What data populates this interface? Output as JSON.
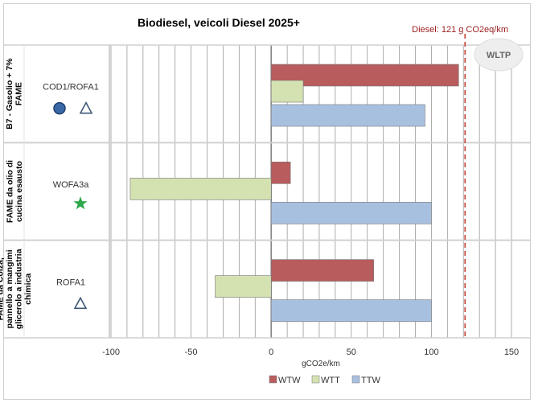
{
  "chart_data": {
    "type": "bar",
    "orientation": "horizontal",
    "title": "Biodiesel, veicoli Diesel  2025+",
    "xlabel": "gCO2e/km",
    "xlim": [
      -100,
      150
    ],
    "xticks": [
      "-100",
      "-50",
      "0",
      "50",
      "100",
      "150"
    ],
    "grid": true,
    "legend_position": "bottom",
    "categories": [
      {
        "label_lines": [
          "B7 - Gasolio + 7%",
          "FAME"
        ],
        "markers": [
          {
            "label": "COD1/ROFA1",
            "icons": [
              "circle-icon",
              "triangle-icon"
            ]
          }
        ]
      },
      {
        "label_lines": [
          "FAME da olio di",
          "cucina esausto"
        ],
        "markers": [
          {
            "label": "WOFA3a",
            "icons": [
              "star-icon"
            ]
          }
        ]
      },
      {
        "label_lines": [
          "FAME da Colza,",
          "pannello a mangimi",
          "glicerolo a industria",
          "chimica"
        ],
        "markers": [
          {
            "label": "ROFA1",
            "icons": [
              "triangle-icon"
            ]
          }
        ]
      }
    ],
    "series": [
      {
        "name": "WTW",
        "color": "#b85c5e",
        "values": [
          117,
          12,
          64
        ]
      },
      {
        "name": "WTT",
        "color": "#d4e2b2",
        "values": [
          20,
          -88,
          -35
        ]
      },
      {
        "name": "TTW",
        "color": "#a8c0e0",
        "values": [
          96,
          100,
          100
        ]
      }
    ],
    "reference_line": {
      "label": "Diesel:  121 g CO2eq/km",
      "value": 121,
      "color": "#c0392b"
    },
    "badge": "WLTP",
    "marker_colors": {
      "circle": "#3a67a8",
      "triangle": "#3e5876",
      "star": "#2ea84a"
    }
  }
}
